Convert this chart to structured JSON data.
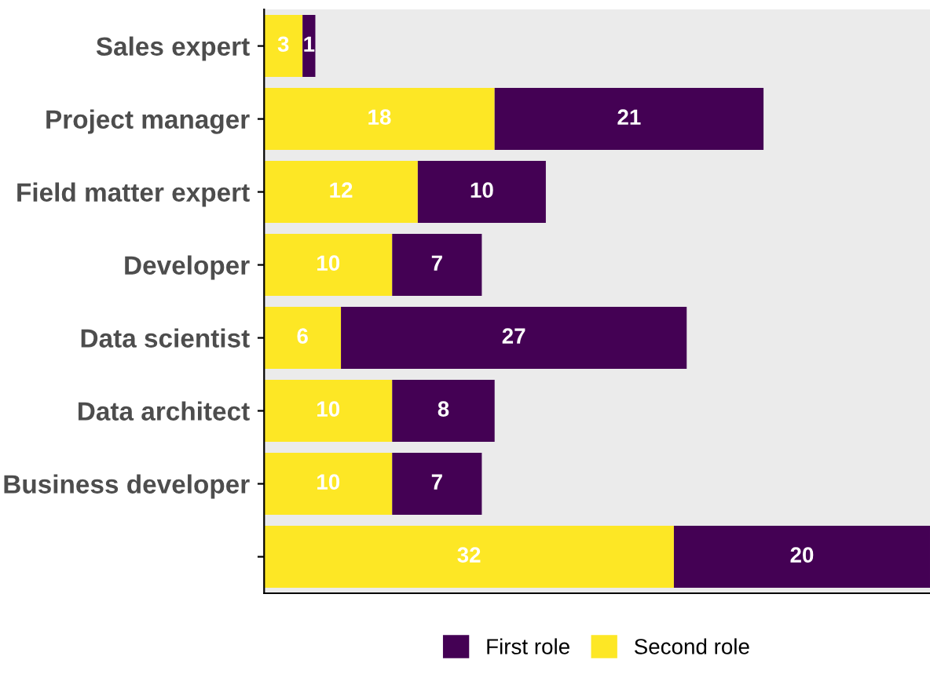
{
  "chart_data": {
    "type": "bar",
    "orientation": "horizontal",
    "stacked": true,
    "categories": [
      "Sales expert",
      "Project manager",
      "Field matter expert",
      "Developer",
      "Data scientist",
      "Data architect",
      "Business developer",
      null
    ],
    "series": [
      {
        "name": "Second role",
        "color": "#fde725",
        "values": [
          3,
          18,
          12,
          10,
          6,
          10,
          10,
          32
        ]
      },
      {
        "name": "First role",
        "color": "#440154",
        "values": [
          1,
          21,
          10,
          7,
          27,
          8,
          7,
          20
        ]
      }
    ],
    "xlim": [
      0,
      52
    ],
    "data_labels": true,
    "tick_labels": "y",
    "grid": false,
    "legend": "bottom"
  }
}
